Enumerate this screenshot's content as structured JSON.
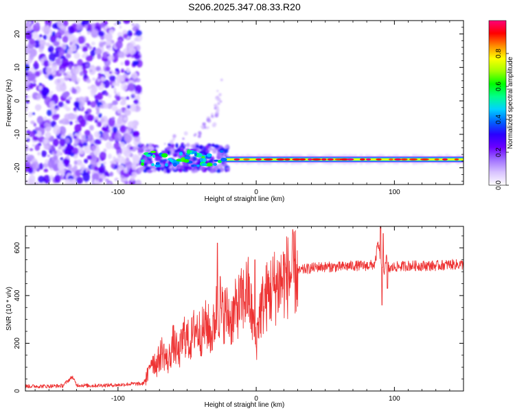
{
  "title": "S206.2025.347.08.33.R20",
  "chart_data": [
    {
      "type": "heatmap",
      "xlabel": "Height of straight line (km)",
      "ylabel": "Frequency (Hz)",
      "xlim": [
        -167,
        150
      ],
      "ylim": [
        -25,
        24
      ],
      "xticks": [
        -100,
        0,
        100
      ],
      "yticks": [
        -20,
        -10,
        0,
        10,
        20
      ],
      "colorbar": {
        "label": "Normalized spectral amplitude",
        "range": [
          0,
          1
        ],
        "ticks": [
          0,
          0.2,
          0.4,
          0.6,
          0.8
        ],
        "tick_labels": [
          "0.0",
          "0.2",
          "0.4",
          "0.6",
          "0.8"
        ],
        "stops": [
          "#ffffff",
          "#d9c4ff",
          "#a070ff",
          "#6b00ff",
          "#2a00ff",
          "#0064ff",
          "#00d2ff",
          "#00ff8c",
          "#00ff00",
          "#a0ff00",
          "#ffff00",
          "#ff8c00",
          "#ff0000",
          "#ff0078"
        ]
      },
      "features": {
        "noise_region_x": [
          -167,
          -84
        ],
        "tone_line_freq_hz": -17.5,
        "tone_onset_x": -84,
        "weak_rising_trace": [
          [
            -84,
            -15
          ],
          [
            -40,
            -9
          ],
          [
            -30,
            -5
          ],
          [
            -25,
            5
          ]
        ]
      }
    },
    {
      "type": "line",
      "xlabel": "Height of straight line (km)",
      "ylabel": "SNR (10 * v/v)",
      "xlim": [
        -167,
        150
      ],
      "ylim": [
        0,
        690
      ],
      "xticks": [
        -100,
        0,
        100
      ],
      "yticks": [
        0,
        200,
        400,
        600
      ],
      "color": "#ee3333",
      "series": [
        {
          "name": "SNR",
          "x": [
            -167,
            -150,
            -140,
            -133,
            -130,
            -120,
            -110,
            -100,
            -90,
            -82,
            -78,
            -76,
            -72,
            -68,
            -64,
            -60,
            -56,
            -52,
            -48,
            -44,
            -40,
            -36,
            -32,
            -28,
            -25,
            -22,
            -18,
            -14,
            -10,
            -6,
            -2,
            0,
            2,
            6,
            10,
            14,
            18,
            22,
            26,
            30,
            35,
            40,
            45,
            50,
            60,
            70,
            80,
            86,
            88,
            90,
            92,
            94,
            96,
            100,
            110,
            120,
            130,
            140,
            150
          ],
          "y": [
            20,
            20,
            22,
            60,
            25,
            22,
            24,
            25,
            30,
            30,
            70,
            140,
            110,
            170,
            120,
            200,
            150,
            240,
            200,
            270,
            240,
            280,
            230,
            360,
            320,
            330,
            300,
            350,
            380,
            420,
            280,
            200,
            320,
            380,
            420,
            440,
            460,
            480,
            490,
            500,
            510,
            515,
            520,
            520,
            520,
            525,
            525,
            530,
            620,
            560,
            480,
            560,
            510,
            520,
            525,
            525,
            525,
            530,
            530
          ]
        }
      ],
      "spikes": [
        [
          -28,
          620
        ],
        [
          -26,
          480
        ],
        [
          -1,
          550
        ],
        [
          90,
          690
        ],
        [
          91,
          360
        ],
        [
          92,
          660
        ],
        [
          95,
          430
        ]
      ]
    }
  ]
}
